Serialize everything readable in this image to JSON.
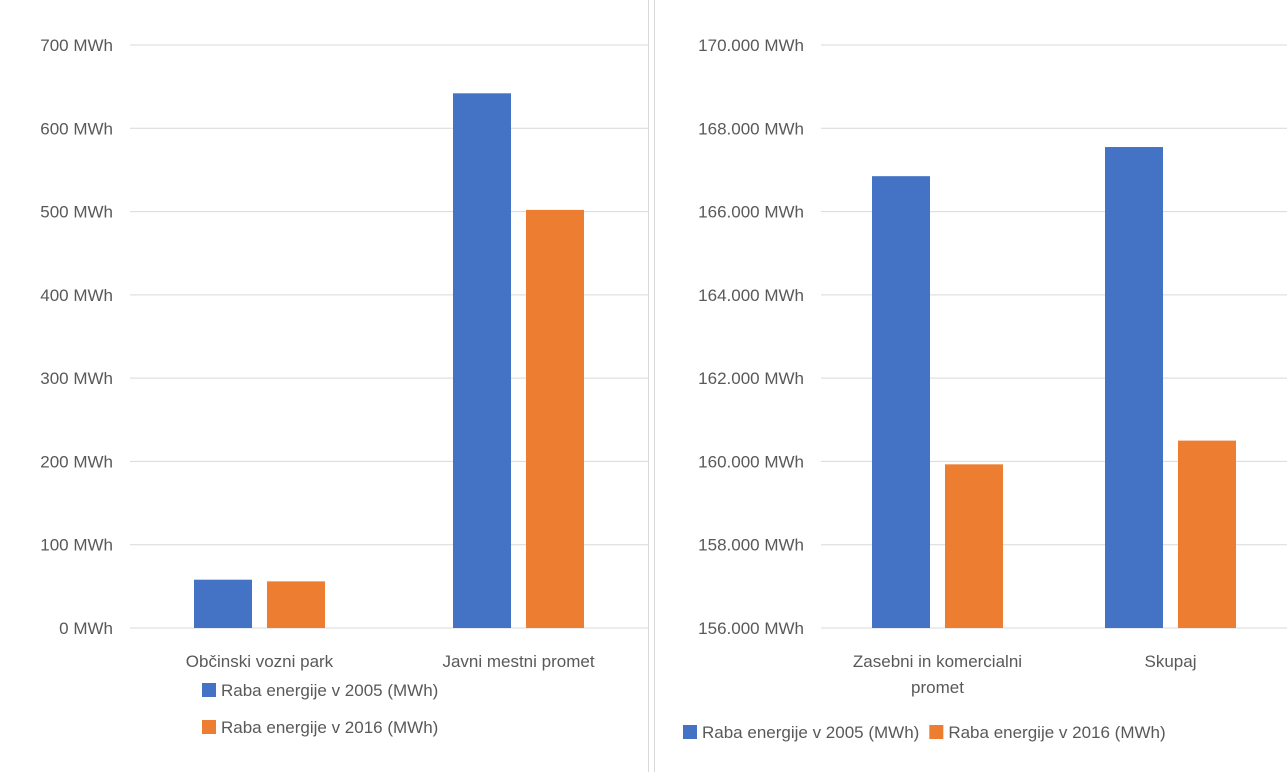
{
  "chart_data": [
    {
      "type": "bar",
      "categories": [
        "Občinski vozni park",
        "Javni mestni promet"
      ],
      "series": [
        {
          "name": "Raba energije v 2005 (MWh)",
          "color": "#4472c4",
          "values": [
            58,
            642
          ]
        },
        {
          "name": "Raba energije v 2016 (MWh)",
          "color": "#ed7d31",
          "values": [
            56,
            502
          ]
        }
      ],
      "yticks": [
        "0 MWh",
        "100 MWh",
        "200 MWh",
        "300 MWh",
        "400 MWh",
        "500 MWh",
        "600 MWh",
        "700 MWh"
      ],
      "ylim": [
        0,
        700
      ],
      "grid": true,
      "legend": "bottom"
    },
    {
      "type": "bar",
      "categories": [
        "Zasebni in komercialni promet",
        "Skupaj"
      ],
      "series": [
        {
          "name": "Raba energije v 2005 (MWh)",
          "color": "#4472c4",
          "values": [
            166850,
            167550
          ]
        },
        {
          "name": "Raba energije v 2016 (MWh)",
          "color": "#ed7d31",
          "values": [
            159930,
            160500
          ]
        }
      ],
      "yticks": [
        "156.000 MWh",
        "158.000 MWh",
        "160.000 MWh",
        "162.000 MWh",
        "164.000 MWh",
        "166.000 MWh",
        "168.000 MWh",
        "170.000 MWh"
      ],
      "ylim": [
        156000,
        170000
      ],
      "grid": true,
      "legend": "bottom"
    }
  ]
}
